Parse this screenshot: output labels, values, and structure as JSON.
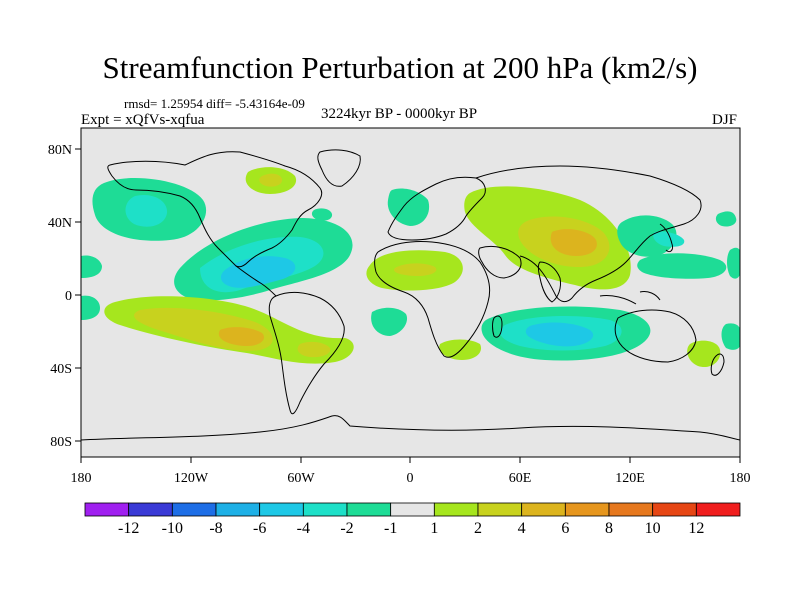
{
  "title": "Streamfunction Perturbation at 200 hPa (km2/s)",
  "stats_line": "rmsd= 1.25954 diff= -5.43164e-09",
  "experiment": "Expt = xQfVs-xqfua",
  "period": "3224kyr BP - 0000kyr BP",
  "season": "DJF",
  "lat_labels": [
    "80N",
    "40N",
    "0",
    "40S",
    "80S"
  ],
  "lon_labels": [
    "180",
    "120W",
    "60W",
    "0",
    "60E",
    "120E",
    "180"
  ],
  "colorbar": {
    "labels": [
      "-12",
      "-10",
      "-8",
      "-6",
      "-4",
      "-2",
      "-1",
      "1",
      "2",
      "4",
      "6",
      "8",
      "10",
      "12"
    ],
    "colors": [
      "#a020f0",
      "#3a3ad6",
      "#1e6ee6",
      "#1eb0e6",
      "#1ec8e6",
      "#1ee0c8",
      "#1edc96",
      "#e6e6e6",
      "#a6e61e",
      "#c8d21e",
      "#dcb41e",
      "#e6961e",
      "#e6781e",
      "#e64614",
      "#f01e1e"
    ]
  },
  "chart_data": {
    "type": "contour-map",
    "variable": "streamfunction perturbation",
    "level": "200 hPa",
    "units": "km2/s",
    "lat_range": [
      -90,
      90
    ],
    "lon_range": [
      -180,
      180
    ],
    "anomalies": [
      {
        "region": "North Pacific (~150W, 40N)",
        "level_bin": "-4 to -2",
        "sign": "negative"
      },
      {
        "region": "Caribbean / tropical North Atlantic (~90W, 15N)",
        "level_bin": "-6 to -4",
        "sign": "negative"
      },
      {
        "region": "Hudson Bay (~80W, 65N)",
        "level_bin": "1 to 2",
        "sign": "positive"
      },
      {
        "region": "South Pacific (~100W, 25S)",
        "level_bin": "4 to 6",
        "sign": "positive"
      },
      {
        "region": "Southern South America (~70W, 35S)",
        "level_bin": "2 to 4",
        "sign": "positive"
      },
      {
        "region": "Southern Africa / Indian Ocean (~70E, 30S)",
        "level_bin": "-6 to -4",
        "sign": "negative"
      },
      {
        "region": "Tibetan Plateau / South Asia (~85E, 30N)",
        "level_bin": "4 to 6",
        "sign": "positive"
      },
      {
        "region": "Tropical Africa (~0, 10N)",
        "level_bin": "2 to 4",
        "sign": "positive"
      },
      {
        "region": "Northwest Pacific (~140E, 35N)",
        "level_bin": "-4 to -2",
        "sign": "negative"
      },
      {
        "region": "Europe (~10E, 55N)",
        "level_bin": "-2 to -1",
        "sign": "negative"
      },
      {
        "region": "Southeast Pacific near New Zealand (~175E, 35S)",
        "level_bin": "1 to 2",
        "sign": "positive"
      }
    ]
  }
}
